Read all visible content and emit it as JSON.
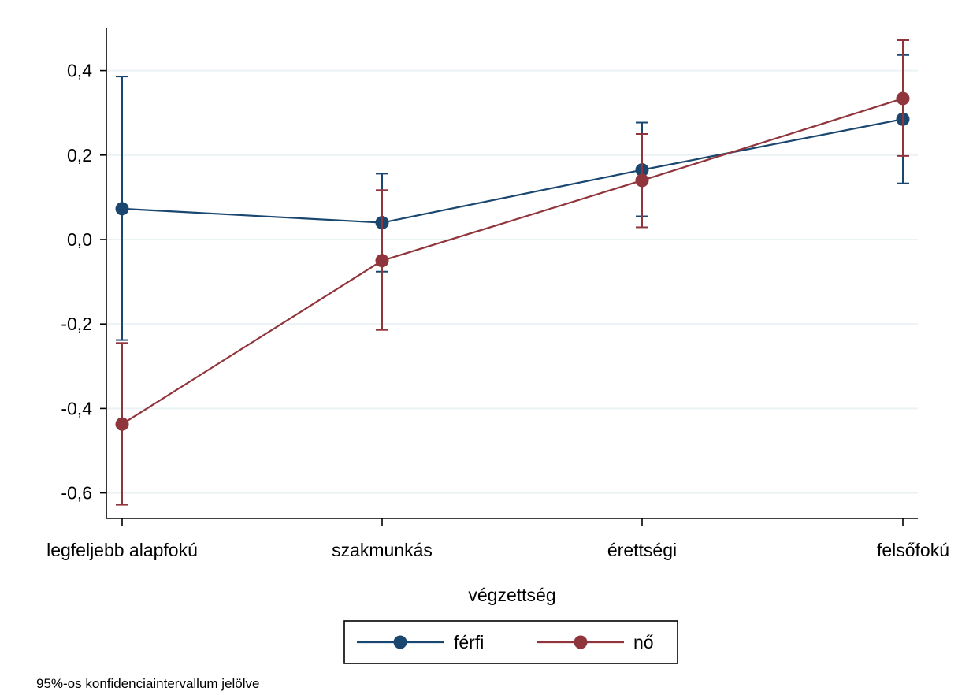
{
  "chart_data": {
    "type": "line",
    "categories": [
      "legfeljebb alapfokú",
      "szakmunkás",
      "érettségi",
      "felsőfokú"
    ],
    "xlabel": "végzettség",
    "ylabel": "",
    "ylim": [
      -0.66,
      0.5
    ],
    "yticks": [
      0.4,
      0.2,
      0.0,
      -0.2,
      -0.4,
      -0.6
    ],
    "ytick_labels": [
      "0,4",
      "0,2",
      "0,0",
      "-0,2",
      "-0,4",
      "-0,6"
    ],
    "grid": true,
    "legend_position": "bottom-center",
    "note": "95%-os konfidenciaintervallum jelölve",
    "series": [
      {
        "name": "férfi",
        "color": "#1a476f",
        "values": [
          0.073,
          0.04,
          0.165,
          0.285
        ],
        "ci_low": [
          -0.238,
          -0.076,
          0.055,
          0.133
        ],
        "ci_high": [
          0.386,
          0.156,
          0.277,
          0.437
        ]
      },
      {
        "name": "nő",
        "color": "#90353b",
        "values": [
          -0.437,
          -0.05,
          0.14,
          0.334
        ],
        "ci_low": [
          -0.628,
          -0.214,
          0.029,
          0.198
        ],
        "ci_high": [
          -0.245,
          0.117,
          0.25,
          0.472
        ]
      }
    ]
  }
}
